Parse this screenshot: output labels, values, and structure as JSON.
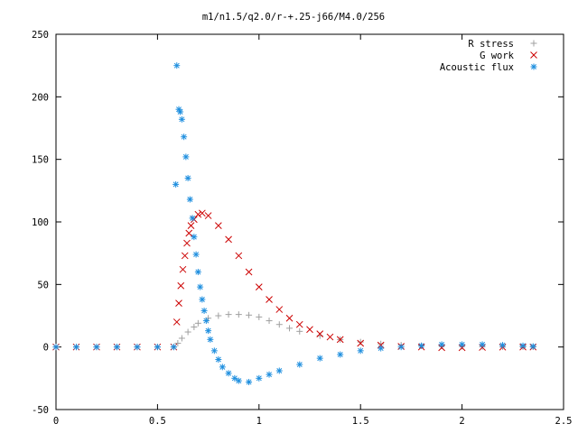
{
  "chart_data": {
    "type": "scatter",
    "title": "m1/n1.5/q2.0/r-+.25-j66/M4.0/256",
    "xlabel": "",
    "ylabel": "",
    "xlim": [
      0,
      2.5
    ],
    "ylim": [
      -50,
      250
    ],
    "x_ticks": [
      "0",
      "0.5",
      "1",
      "1.5",
      "2",
      "2.5"
    ],
    "y_ticks": [
      "-50",
      "0",
      "50",
      "100",
      "150",
      "200",
      "250"
    ],
    "grid": false,
    "legend_position": "top-right",
    "series": [
      {
        "name": "R stress",
        "marker": "plus",
        "color": "#a0a0a0",
        "points": [
          [
            0.0,
            0
          ],
          [
            0.1,
            0
          ],
          [
            0.2,
            0
          ],
          [
            0.3,
            0
          ],
          [
            0.4,
            0
          ],
          [
            0.5,
            0
          ],
          [
            0.58,
            0
          ],
          [
            0.6,
            3
          ],
          [
            0.62,
            7
          ],
          [
            0.65,
            12
          ],
          [
            0.68,
            16
          ],
          [
            0.7,
            19
          ],
          [
            0.75,
            23
          ],
          [
            0.8,
            25
          ],
          [
            0.85,
            26
          ],
          [
            0.9,
            26
          ],
          [
            0.95,
            25.5
          ],
          [
            1.0,
            24
          ],
          [
            1.05,
            21
          ],
          [
            1.1,
            18
          ],
          [
            1.15,
            15
          ],
          [
            1.2,
            12.5
          ],
          [
            1.3,
            9
          ],
          [
            1.4,
            6
          ],
          [
            1.5,
            4
          ],
          [
            1.6,
            2.5
          ],
          [
            1.7,
            1.5
          ],
          [
            1.8,
            1
          ],
          [
            1.9,
            0.8
          ],
          [
            2.0,
            0.5
          ],
          [
            2.1,
            0.3
          ],
          [
            2.2,
            0.2
          ],
          [
            2.3,
            0.1
          ],
          [
            2.35,
            0.1
          ]
        ]
      },
      {
        "name": "G work",
        "marker": "cross",
        "color": "#cc0000",
        "points": [
          [
            0.0,
            0
          ],
          [
            0.1,
            0
          ],
          [
            0.2,
            0
          ],
          [
            0.3,
            0
          ],
          [
            0.4,
            0
          ],
          [
            0.5,
            0
          ],
          [
            0.58,
            0
          ],
          [
            0.595,
            20
          ],
          [
            0.605,
            35
          ],
          [
            0.615,
            49
          ],
          [
            0.625,
            62
          ],
          [
            0.635,
            73
          ],
          [
            0.645,
            83
          ],
          [
            0.655,
            91
          ],
          [
            0.665,
            97
          ],
          [
            0.68,
            102
          ],
          [
            0.7,
            106
          ],
          [
            0.72,
            107
          ],
          [
            0.75,
            105
          ],
          [
            0.8,
            97
          ],
          [
            0.85,
            86
          ],
          [
            0.9,
            73
          ],
          [
            0.95,
            60
          ],
          [
            1.0,
            48
          ],
          [
            1.05,
            38
          ],
          [
            1.1,
            30
          ],
          [
            1.15,
            23
          ],
          [
            1.2,
            18
          ],
          [
            1.25,
            14
          ],
          [
            1.3,
            10.5
          ],
          [
            1.35,
            8
          ],
          [
            1.4,
            6
          ],
          [
            1.5,
            3
          ],
          [
            1.6,
            1.5
          ],
          [
            1.7,
            0.5
          ],
          [
            1.8,
            0
          ],
          [
            1.9,
            -0.5
          ],
          [
            2.0,
            -0.5
          ],
          [
            2.1,
            -0.3
          ],
          [
            2.2,
            -0.1
          ],
          [
            2.3,
            0
          ],
          [
            2.35,
            0
          ]
        ]
      },
      {
        "name": "Acoustic flux",
        "marker": "star",
        "color": "#1f8fdf",
        "points": [
          [
            0.0,
            0
          ],
          [
            0.1,
            0
          ],
          [
            0.2,
            0
          ],
          [
            0.3,
            0
          ],
          [
            0.4,
            0
          ],
          [
            0.5,
            0
          ],
          [
            0.58,
            0
          ],
          [
            0.59,
            130
          ],
          [
            0.595,
            225
          ],
          [
            0.605,
            190
          ],
          [
            0.612,
            188
          ],
          [
            0.62,
            182
          ],
          [
            0.63,
            168
          ],
          [
            0.64,
            152
          ],
          [
            0.65,
            135
          ],
          [
            0.66,
            118
          ],
          [
            0.672,
            103
          ],
          [
            0.68,
            88
          ],
          [
            0.69,
            74
          ],
          [
            0.7,
            60
          ],
          [
            0.71,
            48
          ],
          [
            0.72,
            38
          ],
          [
            0.73,
            29
          ],
          [
            0.74,
            21
          ],
          [
            0.75,
            13
          ],
          [
            0.76,
            6
          ],
          [
            0.78,
            -3
          ],
          [
            0.8,
            -10
          ],
          [
            0.82,
            -16
          ],
          [
            0.85,
            -21
          ],
          [
            0.88,
            -25
          ],
          [
            0.9,
            -27
          ],
          [
            0.95,
            -28
          ],
          [
            1.0,
            -25
          ],
          [
            1.05,
            -22
          ],
          [
            1.1,
            -19
          ],
          [
            1.2,
            -14
          ],
          [
            1.3,
            -9
          ],
          [
            1.4,
            -6
          ],
          [
            1.5,
            -3
          ],
          [
            1.6,
            -1
          ],
          [
            1.7,
            0
          ],
          [
            1.8,
            1
          ],
          [
            1.9,
            2
          ],
          [
            2.0,
            2
          ],
          [
            2.1,
            2
          ],
          [
            2.2,
            1.5
          ],
          [
            2.3,
            1
          ],
          [
            2.35,
            0.5
          ]
        ]
      }
    ]
  }
}
